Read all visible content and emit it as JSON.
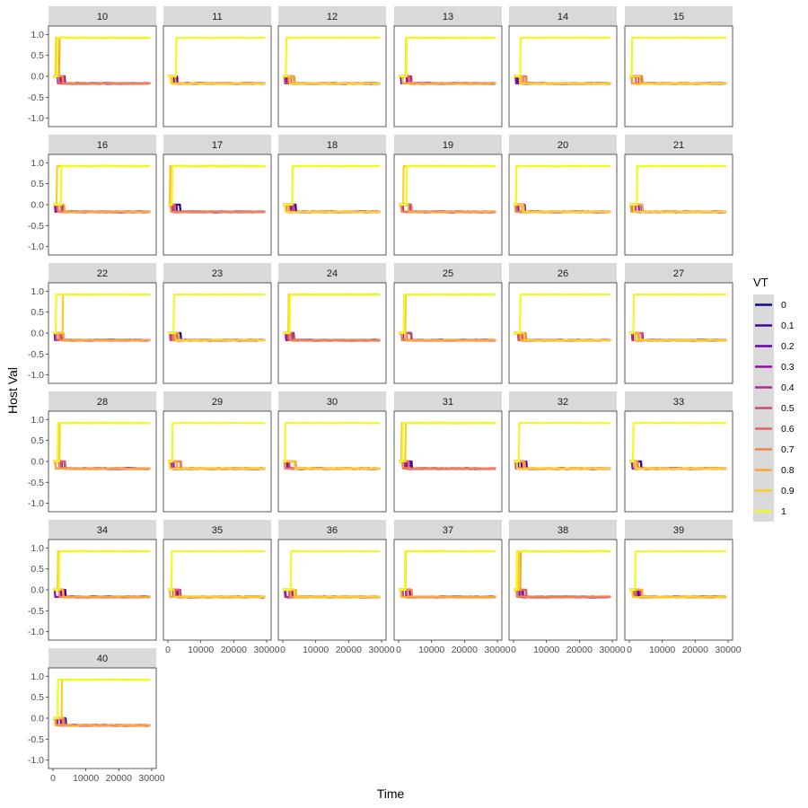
{
  "chart_data": {
    "type": "line",
    "facet_variable": "",
    "panels": [
      "10",
      "11",
      "12",
      "13",
      "14",
      "15",
      "16",
      "17",
      "18",
      "19",
      "20",
      "21",
      "22",
      "23",
      "24",
      "25",
      "26",
      "27",
      "28",
      "29",
      "30",
      "31",
      "32",
      "33",
      "34",
      "35",
      "36",
      "37",
      "38",
      "39",
      "40"
    ],
    "xlabel": "Time",
    "ylabel": "Host Val",
    "xlim": [
      0,
      30000
    ],
    "ylim": [
      -1.2,
      1.2
    ],
    "x_ticks": [
      0,
      10000,
      20000,
      30000
    ],
    "x_tick_labels": [
      "0",
      "10000",
      "20000",
      "30000"
    ],
    "y_ticks": [
      -1.0,
      -0.5,
      0.0,
      0.5,
      1.0
    ],
    "y_tick_labels": [
      "-1.0",
      "-0.5",
      "0.0",
      "0.5",
      "1.0"
    ],
    "grid": false,
    "legend": {
      "title": "VT",
      "placement": "right",
      "entries": [
        {
          "label": "0",
          "color": "#0d0887"
        },
        {
          "label": "0.1",
          "color": "#41049d"
        },
        {
          "label": "0.2",
          "color": "#6a00a8"
        },
        {
          "label": "0.3",
          "color": "#8f0da4"
        },
        {
          "label": "0.4",
          "color": "#b12a90"
        },
        {
          "label": "0.5",
          "color": "#cc4778"
        },
        {
          "label": "0.6",
          "color": "#e16462"
        },
        {
          "label": "0.7",
          "color": "#f2844b"
        },
        {
          "label": "0.8",
          "color": "#fca636"
        },
        {
          "label": "0.9",
          "color": "#fcce25"
        },
        {
          "label": "1",
          "color": "#f0f921"
        }
      ]
    },
    "series_shape": "Each VT series starts near 0, then stays near -0.17 (low state) or rises to about 0.92 (high state) shortly after Time 0; VT=1 (and higher VT in some panels) reaches the high state.",
    "high_level": 0.92,
    "low_level": -0.17
  }
}
